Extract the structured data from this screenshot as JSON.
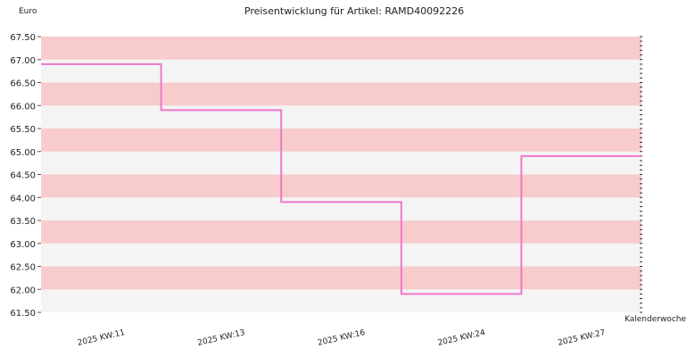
{
  "chart_data": {
    "type": "line",
    "step": true,
    "title": "Preisentwicklung für Artikel: RAMD40092226",
    "ylabel": "Euro",
    "xlabel": "Kalenderwoche",
    "ylim": [
      61.5,
      67.5
    ],
    "y_ticks": [
      "67.50",
      "67.00",
      "66.50",
      "66.00",
      "65.50",
      "65.00",
      "64.50",
      "64.00",
      "63.50",
      "63.00",
      "62.50",
      "62.00",
      "61.50"
    ],
    "x_ticks": [
      "2025 KW:11",
      "2025 KW:13",
      "2025 KW:16",
      "2025 KW:24",
      "2025 KW:27"
    ],
    "series": [
      {
        "x": [
          "2025 KW:11",
          "2025 KW:13",
          "2025 KW:16",
          "2025 KW:24",
          "2025 KW:27"
        ],
        "values": [
          66.9,
          65.9,
          63.9,
          61.9,
          64.9
        ]
      }
    ],
    "colors": {
      "line": "#ee77cc",
      "band_pink": "#f8cccc",
      "band_light": "#f4f4f4"
    },
    "grid": false
  }
}
